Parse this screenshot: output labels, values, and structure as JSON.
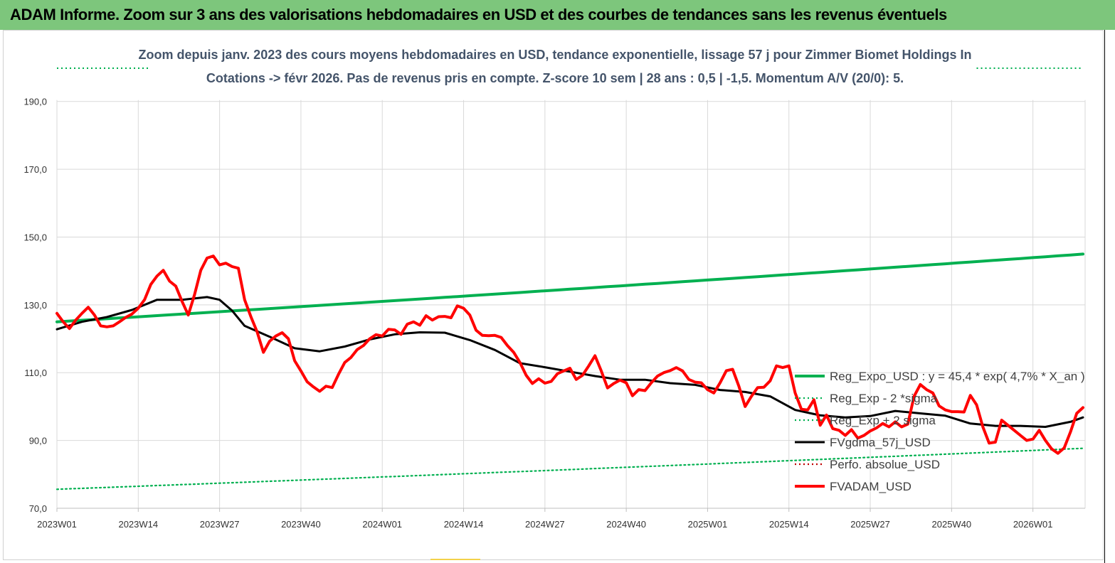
{
  "banner": {
    "title": "ADAM Informe. Zoom sur 3 ans des valorisations hebdomadaires en USD et des courbes de tendances sans les revenus éventuels",
    "background_color": "#7dc67c"
  },
  "chart_data": {
    "type": "line",
    "title_line1": "Zoom depuis janv. 2023 des cours moyens hebdomadaires en USD, tendance exponentielle, lissage 57 j pour Zimmer Biomet Holdings In",
    "title_line2": "Cotations -> févr 2026.  Pas de revenus pris en compte. Z-score 10 sem  | 28 ans : 0,5 | -1,5. Momentum A/V (20/0): 5.",
    "ylim": [
      70,
      200
    ],
    "yticks": [
      "190,0",
      "170,0",
      "150,0",
      "130,0",
      "110,0",
      "90,0",
      "70,0"
    ],
    "ytick_values": [
      190,
      170,
      150,
      130,
      110,
      90,
      70
    ],
    "xticks": [
      "2023W01",
      "2023W14",
      "2023W27",
      "2023W40",
      "2024W01",
      "2024W14",
      "2024W27",
      "2024W40",
      "2025W01",
      "2025W14",
      "2025W27",
      "2025W40",
      "2026W01"
    ],
    "xtick_weeks": [
      0,
      13,
      26,
      39,
      52,
      65,
      78,
      91,
      104,
      117,
      130,
      143,
      156
    ],
    "x_last_week": 164,
    "grid": true,
    "legend_placement": "right",
    "series": [
      {
        "name": "Reg_Expo_USD : y = 45,4 * exp( 4,7% *  X_an )",
        "color": "#00b050",
        "style": "thick",
        "x": [
          0,
          164
        ],
        "growth_rate": 0.047,
        "start": 125.0
      },
      {
        "name": "Reg_Exp - 2 *sigma",
        "color": "#00b050",
        "style": "dotted",
        "x": [
          0,
          15,
          47,
          154
        ],
        "values": [
          199.8,
          199.8,
          null,
          199.8
        ],
        "segments": [
          [
            0,
            15
          ],
          [
            147,
            164
          ]
        ]
      },
      {
        "name": "Reg_Exp + 2 sigma",
        "color": "#00b050",
        "style": "dotted",
        "x": [
          0,
          164
        ],
        "growth_rate": 0.047,
        "start": 75.6
      },
      {
        "name": "FVgdma_57j_USD",
        "color": "#000000",
        "style": "solid",
        "x": [
          0,
          4,
          8,
          12,
          16,
          20,
          24,
          26,
          28,
          30,
          34,
          38,
          42,
          46,
          50,
          54,
          58,
          62,
          66,
          70,
          74,
          78,
          82,
          86,
          90,
          94,
          98,
          102,
          106,
          110,
          114,
          118,
          122,
          126,
          130,
          134,
          138,
          142,
          146,
          150,
          154,
          158,
          162,
          164
        ],
        "values": [
          122.8,
          125.0,
          126.4,
          128.5,
          131.5,
          131.5,
          132.3,
          131.5,
          128.3,
          123.8,
          120.6,
          117.2,
          116.3,
          117.7,
          119.8,
          121.3,
          121.9,
          121.8,
          119.6,
          116.7,
          112.8,
          111.6,
          110.3,
          109.0,
          107.9,
          107.9,
          106.9,
          106.4,
          104.9,
          104.3,
          103.0,
          99.0,
          97.4,
          96.8,
          97.2,
          98.7,
          98.0,
          97.3,
          95.0,
          94.3,
          94.3,
          94.0,
          95.5,
          96.8
        ]
      },
      {
        "name": "Perfo. absolue_USD",
        "color": "#c00000",
        "style": "dotted",
        "x": [],
        "values": []
      },
      {
        "name": "FVADAM_USD",
        "color": "#ff0000",
        "style": "thick",
        "x": [
          0,
          1,
          2,
          3,
          4,
          5,
          6,
          7,
          8,
          9,
          10,
          11,
          12,
          13,
          14,
          15,
          16,
          17,
          18,
          19,
          20,
          21,
          22,
          23,
          24,
          25,
          26,
          27,
          28,
          29,
          30,
          31,
          32,
          33,
          34,
          35,
          36,
          37,
          38,
          39,
          40,
          41,
          42,
          43,
          44,
          45,
          46,
          47,
          48,
          49,
          50,
          51,
          52,
          53,
          54,
          55,
          56,
          57,
          58,
          59,
          60,
          61,
          62,
          63,
          64,
          65,
          66,
          67,
          68,
          69,
          70,
          71,
          72,
          73,
          74,
          75,
          76,
          77,
          78,
          79,
          80,
          81,
          82,
          83,
          84,
          85,
          86,
          87,
          88,
          89,
          90,
          91,
          92,
          93,
          94,
          95,
          96,
          97,
          98,
          99,
          100,
          101,
          102,
          103,
          104,
          105,
          106,
          107,
          108,
          109,
          110,
          111,
          112,
          113,
          114,
          115,
          116,
          117,
          118,
          119,
          120,
          121,
          122,
          123,
          124,
          125,
          126,
          127,
          128,
          129,
          130,
          131,
          132,
          133,
          134,
          135,
          136,
          137,
          138,
          139,
          140,
          141,
          142,
          143,
          144,
          145,
          146,
          147,
          148,
          149,
          150,
          151,
          152,
          153,
          154,
          155,
          156,
          157,
          158,
          159,
          160,
          161,
          162,
          163,
          164
        ],
        "values": [
          127.5,
          125.0,
          123.0,
          125.5,
          127.5,
          129.3,
          127.0,
          123.8,
          123.5,
          123.8,
          125.0,
          126.3,
          127.3,
          129.0,
          131.5,
          136.0,
          138.5,
          140.2,
          137.0,
          135.5,
          131.0,
          127.0,
          133.0,
          140.2,
          143.8,
          144.4,
          141.8,
          142.3,
          141.3,
          140.8,
          131.5,
          126.5,
          122.0,
          116.0,
          119.3,
          120.8,
          121.8,
          120.0,
          113.5,
          110.5,
          107.3,
          105.8,
          104.5,
          106.0,
          105.6,
          109.5,
          113.0,
          114.5,
          116.8,
          118.0,
          120.0,
          121.2,
          120.8,
          122.8,
          122.6,
          121.3,
          124.3,
          125.0,
          124.0,
          126.8,
          125.5,
          126.5,
          126.6,
          126.2,
          129.7,
          129.0,
          127.0,
          122.5,
          121.0,
          120.9,
          121.0,
          120.4,
          118.0,
          116.0,
          113.0,
          109.2,
          106.8,
          108.2,
          106.9,
          107.4,
          109.7,
          110.5,
          111.3,
          108.0,
          109.2,
          112.0,
          115.0,
          110.5,
          105.5,
          106.8,
          107.8,
          107.0,
          103.2,
          105.0,
          104.7,
          107.0,
          109.0,
          110.0,
          110.6,
          111.5,
          110.5,
          108.0,
          107.2,
          107.0,
          105.0,
          104.0,
          107.0,
          110.6,
          111.0,
          106.0,
          100.0,
          103.0,
          105.6,
          105.7,
          107.6,
          112.0,
          111.5,
          112.0,
          104.0,
          99.2,
          99.0,
          102.0,
          94.5,
          97.5,
          93.5,
          93.0,
          91.5,
          93.2,
          90.7,
          91.5,
          92.8,
          93.7,
          95.0,
          94.0,
          95.5,
          94.0,
          94.8,
          103.0,
          106.5,
          105.0,
          104.0,
          100.2,
          99.0,
          98.5,
          98.5,
          98.4,
          103.3,
          100.5,
          94.0,
          89.2,
          89.5,
          96.0,
          94.5,
          93.0,
          91.5,
          90.0,
          90.4,
          93.0,
          90.0,
          87.5,
          86.2,
          87.8,
          92.5,
          98.0,
          99.7
        ]
      }
    ]
  }
}
